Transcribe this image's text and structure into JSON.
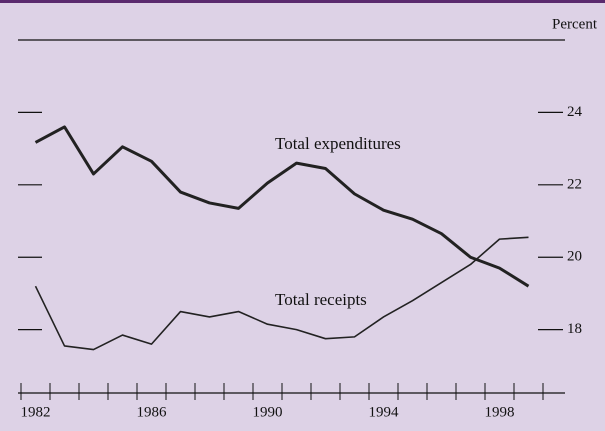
{
  "chart_data": {
    "type": "line",
    "y_label": "Percent",
    "x": [
      1982,
      1983,
      1984,
      1985,
      1986,
      1987,
      1988,
      1989,
      1990,
      1991,
      1992,
      1993,
      1994,
      1995,
      1996,
      1997,
      1998,
      1999
    ],
    "series": [
      {
        "name": "Total expenditures",
        "color": "#222222",
        "values": [
          23.17,
          23.6,
          22.3,
          23.05,
          22.65,
          21.8,
          21.5,
          21.35,
          22.05,
          22.6,
          22.45,
          21.75,
          21.3,
          21.05,
          20.65,
          20.0,
          19.7,
          19.2
        ]
      },
      {
        "name": "Total receipts",
        "color": "#222222",
        "values": [
          19.2,
          17.55,
          17.45,
          17.85,
          17.6,
          18.5,
          18.35,
          18.5,
          18.15,
          18.0,
          17.75,
          17.8,
          18.35,
          18.8,
          19.3,
          19.8,
          20.5,
          20.55
        ]
      }
    ],
    "xlim": [
      1981.5,
      1999.5
    ],
    "xticks": [
      1982,
      1986,
      1990,
      1994,
      1998
    ],
    "ylim": [
      16.25,
      26
    ],
    "yticks": [
      18,
      20,
      22,
      24
    ]
  }
}
